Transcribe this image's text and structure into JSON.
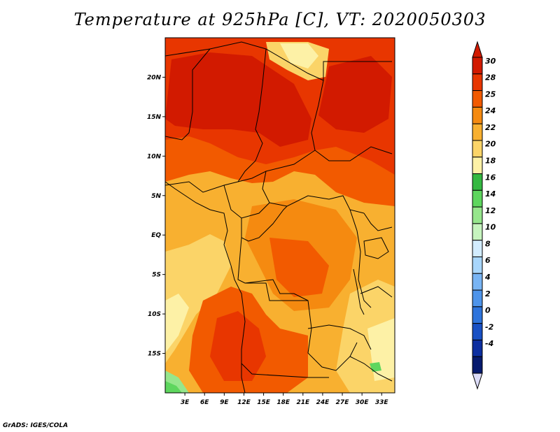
{
  "title": "Temperature at 925hPa [C], VT: 2020050303",
  "credit": "GrADS: IGES/COLA",
  "map": {
    "lat_ticks": [
      "20N",
      "15N",
      "10N",
      "5N",
      "EQ",
      "5S",
      "10S",
      "15S"
    ],
    "lat_values": [
      20,
      15,
      10,
      5,
      0,
      -5,
      -10,
      -15
    ],
    "lon_ticks": [
      "3E",
      "6E",
      "9E",
      "12E",
      "15E",
      "18E",
      "21E",
      "24E",
      "27E",
      "30E",
      "33E"
    ],
    "lon_values": [
      3,
      6,
      9,
      12,
      15,
      18,
      21,
      24,
      27,
      30,
      33
    ],
    "lat_range": [
      -20,
      25
    ],
    "lon_range": [
      0,
      35
    ]
  },
  "colorbar": {
    "labels": [
      "30",
      "28",
      "25",
      "24",
      "22",
      "20",
      "18",
      "16",
      "14",
      "12",
      "10",
      "8",
      "6",
      "4",
      "2",
      "0",
      "-2",
      "-4"
    ],
    "colors": [
      "#d21a00",
      "#e83600",
      "#f25a00",
      "#f58a10",
      "#f8b030",
      "#fbd468",
      "#fdf1a6",
      "#34b841",
      "#5ed65e",
      "#96e68c",
      "#c6f4be",
      "#d2ecff",
      "#a8d6fc",
      "#78b4f4",
      "#4e94ea",
      "#2e74dc",
      "#1850c4",
      "#0c2ea0",
      "#061a6e"
    ],
    "tip_top_color": "#d21a00",
    "tip_bottom_color": "#dcdcf8"
  },
  "palette": {
    "deep_red": "#d21a00",
    "red": "#e83600",
    "red_orange": "#f25a00",
    "orange": "#f58a10",
    "light_orange": "#f8b030",
    "yellow": "#fbd468",
    "pale_yellow": "#fdf1a6",
    "green": "#5ed65e",
    "light_green": "#96e68c"
  }
}
